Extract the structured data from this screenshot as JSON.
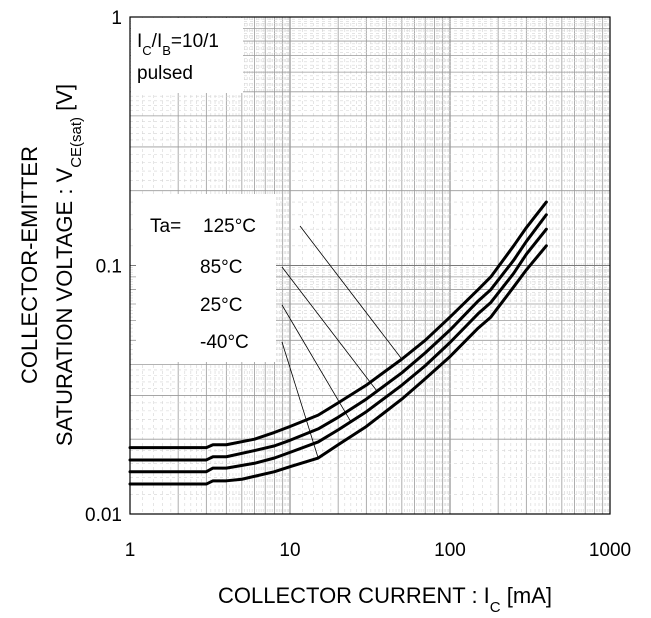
{
  "chart_data": {
    "type": "line",
    "x_scale": "log",
    "y_scale": "log",
    "xlim": [
      1,
      1000
    ],
    "ylim": [
      0.01,
      1
    ],
    "grid": true,
    "xlabel": {
      "main": "COLLECTOR CURRENT : I",
      "sub": "C",
      "unit": " [mA]"
    },
    "ylabel": {
      "line1": "COLLECTOR-EMITTER",
      "line2_main": "SATURATION VOLTAGE : V",
      "line2_sub": "CE(sat)",
      "line2_unit": " [V]"
    },
    "x_ticks": [
      {
        "value": 1,
        "label": "1"
      },
      {
        "value": 10,
        "label": "10"
      },
      {
        "value": 100,
        "label": "100"
      },
      {
        "value": 1000,
        "label": "1000"
      }
    ],
    "y_ticks": [
      {
        "value": 0.01,
        "label": "0.01"
      },
      {
        "value": 0.1,
        "label": "0.1"
      },
      {
        "value": 1,
        "label": "1"
      }
    ],
    "condition": {
      "line1_a": "I",
      "line1_a_sub": "C",
      "line1_b": "/I",
      "line1_b_sub": "B",
      "line1_c": "=10/1",
      "line2": "pulsed"
    },
    "legend_prefix": "Ta=",
    "series": [
      {
        "name": "125°C",
        "points": [
          [
            1,
            0.0185
          ],
          [
            3,
            0.0185
          ],
          [
            3.3,
            0.019
          ],
          [
            4,
            0.019
          ],
          [
            6,
            0.02
          ],
          [
            8,
            0.0213
          ],
          [
            10,
            0.0225
          ],
          [
            15,
            0.025
          ],
          [
            20,
            0.028
          ],
          [
            30,
            0.033
          ],
          [
            50,
            0.042
          ],
          [
            70,
            0.05
          ],
          [
            100,
            0.062
          ],
          [
            150,
            0.08
          ],
          [
            180,
            0.09
          ],
          [
            250,
            0.12
          ],
          [
            300,
            0.142
          ],
          [
            400,
            0.18
          ]
        ]
      },
      {
        "name": "85°C",
        "points": [
          [
            1,
            0.0165
          ],
          [
            3,
            0.0165
          ],
          [
            3.3,
            0.017
          ],
          [
            4,
            0.017
          ],
          [
            6,
            0.018
          ],
          [
            8,
            0.0188
          ],
          [
            10,
            0.0198
          ],
          [
            15,
            0.022
          ],
          [
            20,
            0.0245
          ],
          [
            30,
            0.029
          ],
          [
            50,
            0.037
          ],
          [
            70,
            0.0445
          ],
          [
            100,
            0.055
          ],
          [
            150,
            0.072
          ],
          [
            180,
            0.08
          ],
          [
            250,
            0.105
          ],
          [
            300,
            0.125
          ],
          [
            400,
            0.16
          ]
        ]
      },
      {
        "name": "25°C",
        "points": [
          [
            1,
            0.0148
          ],
          [
            3,
            0.0148
          ],
          [
            3.3,
            0.0153
          ],
          [
            4,
            0.0153
          ],
          [
            6,
            0.016
          ],
          [
            8,
            0.0168
          ],
          [
            10,
            0.0177
          ],
          [
            15,
            0.0195
          ],
          [
            20,
            0.0218
          ],
          [
            30,
            0.0258
          ],
          [
            50,
            0.033
          ],
          [
            70,
            0.0395
          ],
          [
            100,
            0.049
          ],
          [
            150,
            0.064
          ],
          [
            180,
            0.071
          ],
          [
            250,
            0.093
          ],
          [
            300,
            0.111
          ],
          [
            400,
            0.14
          ]
        ]
      },
      {
        "name": "-40°C",
        "points": [
          [
            1,
            0.0132
          ],
          [
            3,
            0.0132
          ],
          [
            3.3,
            0.0136
          ],
          [
            4,
            0.0136
          ],
          [
            5,
            0.0138
          ],
          [
            8,
            0.0148
          ],
          [
            10,
            0.0155
          ],
          [
            15,
            0.0168
          ],
          [
            20,
            0.019
          ],
          [
            30,
            0.0225
          ],
          [
            50,
            0.029
          ],
          [
            70,
            0.035
          ],
          [
            100,
            0.043
          ],
          [
            150,
            0.056
          ],
          [
            180,
            0.062
          ],
          [
            250,
            0.082
          ],
          [
            300,
            0.096
          ],
          [
            400,
            0.12
          ]
        ]
      }
    ],
    "legend_pointers": [
      {
        "series": "125°C",
        "target_x": 50
      },
      {
        "series": "85°C",
        "target_x": 35
      },
      {
        "series": "25°C",
        "target_x": 24
      },
      {
        "series": "-40°C",
        "target_x": 15
      }
    ]
  }
}
